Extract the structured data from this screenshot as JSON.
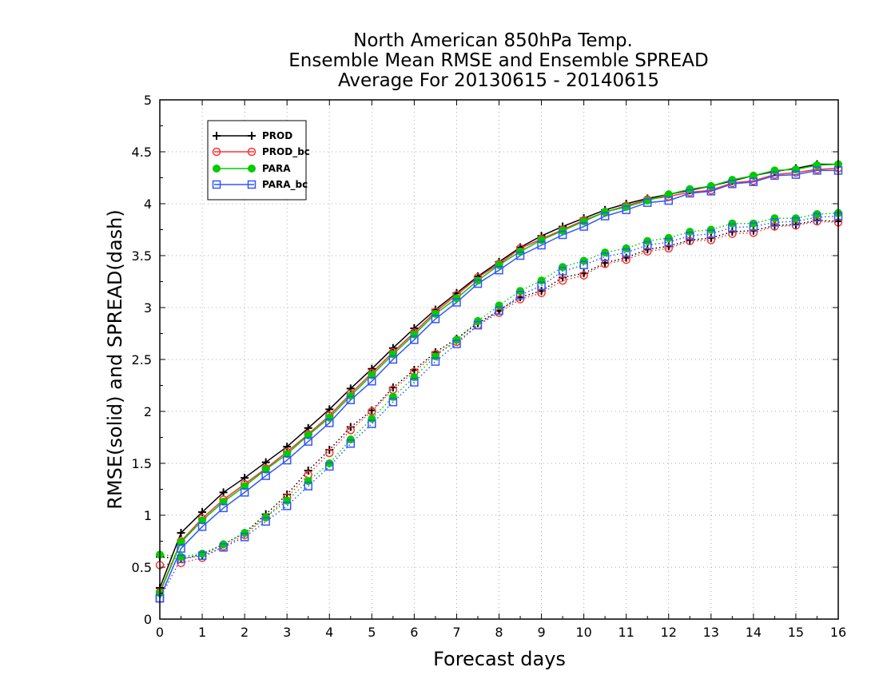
{
  "chart_data": {
    "type": "line",
    "title": [
      "North American 850hPa Temp.",
      "Ensemble Mean RMSE and Ensemble SPREAD",
      "Average For 20130615 - 20140615"
    ],
    "xlabel": "Forecast days",
    "ylabel": "RMSE(solid) and SPREAD(dash)",
    "xlim": [
      0,
      16
    ],
    "ylim": [
      0,
      5
    ],
    "xticks": [
      0,
      1,
      2,
      3,
      4,
      5,
      6,
      7,
      8,
      9,
      10,
      11,
      12,
      13,
      14,
      15,
      16
    ],
    "xtick_labels": [
      "0",
      "1",
      "2",
      "3",
      "4",
      "5",
      "6",
      "7",
      "8",
      "9",
      "10",
      "11",
      "12",
      "13",
      "14",
      "15",
      "16"
    ],
    "yticks": [
      0,
      0.5,
      1,
      1.5,
      2,
      2.5,
      3,
      3.5,
      4,
      4.5,
      5
    ],
    "ytick_labels": [
      "0",
      "0.5",
      "1",
      "1.5",
      "2",
      "2.5",
      "3",
      "3.5",
      "4",
      "4.5",
      "5"
    ],
    "grid": true,
    "legend_position": "top-left",
    "x": [
      0,
      0.5,
      1,
      1.5,
      2,
      2.5,
      3,
      3.5,
      4,
      4.5,
      5,
      5.5,
      6,
      6.5,
      7,
      7.5,
      8,
      8.5,
      9,
      9.5,
      10,
      10.5,
      11,
      11.5,
      12,
      12.5,
      13,
      13.5,
      14,
      14.5,
      15,
      15.5,
      16
    ],
    "series": [
      {
        "name": "PROD",
        "color": "#000000",
        "marker": "plus",
        "rmse": [
          0.3,
          0.83,
          1.03,
          1.22,
          1.36,
          1.51,
          1.66,
          1.84,
          2.02,
          2.22,
          2.41,
          2.61,
          2.8,
          2.98,
          3.14,
          3.3,
          3.44,
          3.58,
          3.69,
          3.78,
          3.86,
          3.94,
          4.0,
          4.05,
          4.09,
          4.13,
          4.17,
          4.22,
          4.27,
          4.31,
          4.34,
          4.38,
          4.38
        ],
        "spread": [
          0.6,
          0.58,
          0.62,
          0.72,
          0.83,
          1.01,
          1.2,
          1.43,
          1.63,
          1.85,
          2.01,
          2.23,
          2.4,
          2.57,
          2.7,
          2.85,
          2.97,
          3.1,
          3.16,
          3.29,
          3.33,
          3.43,
          3.48,
          3.56,
          3.59,
          3.65,
          3.67,
          3.73,
          3.74,
          3.79,
          3.8,
          3.84,
          3.83
        ]
      },
      {
        "name": "PROD_bc",
        "color": "#ff3333",
        "marker": "circle-open",
        "rmse": [
          0.26,
          0.75,
          0.97,
          1.15,
          1.3,
          1.45,
          1.61,
          1.78,
          1.96,
          2.17,
          2.37,
          2.57,
          2.76,
          2.96,
          3.12,
          3.29,
          3.42,
          3.57,
          3.66,
          3.75,
          3.84,
          3.92,
          3.98,
          4.04,
          4.07,
          4.11,
          4.13,
          4.2,
          4.22,
          4.28,
          4.3,
          4.33,
          4.34
        ],
        "spread": [
          0.52,
          0.54,
          0.59,
          0.7,
          0.81,
          0.98,
          1.17,
          1.39,
          1.6,
          1.82,
          2.0,
          2.21,
          2.38,
          2.55,
          2.67,
          2.83,
          2.95,
          3.08,
          3.14,
          3.26,
          3.31,
          3.42,
          3.46,
          3.54,
          3.57,
          3.64,
          3.65,
          3.71,
          3.72,
          3.78,
          3.79,
          3.83,
          3.82
        ]
      },
      {
        "name": "PARA",
        "color": "#00cc00",
        "marker": "circle-filled",
        "rmse": [
          0.25,
          0.74,
          0.95,
          1.13,
          1.28,
          1.44,
          1.59,
          1.77,
          1.94,
          2.15,
          2.35,
          2.55,
          2.74,
          2.94,
          3.09,
          3.26,
          3.41,
          3.54,
          3.65,
          3.74,
          3.83,
          3.92,
          3.97,
          4.03,
          4.09,
          4.14,
          4.17,
          4.23,
          4.27,
          4.32,
          4.33,
          4.37,
          4.38
        ],
        "spread": [
          0.62,
          0.6,
          0.63,
          0.72,
          0.83,
          0.98,
          1.14,
          1.33,
          1.5,
          1.73,
          1.93,
          2.14,
          2.33,
          2.53,
          2.69,
          2.87,
          3.02,
          3.16,
          3.26,
          3.39,
          3.45,
          3.53,
          3.57,
          3.64,
          3.67,
          3.73,
          3.75,
          3.81,
          3.81,
          3.86,
          3.86,
          3.9,
          3.91
        ]
      },
      {
        "name": "PARA_bc",
        "color": "#3355ff",
        "marker": "square-open",
        "rmse": [
          0.2,
          0.68,
          0.89,
          1.07,
          1.22,
          1.38,
          1.53,
          1.71,
          1.89,
          2.11,
          2.29,
          2.5,
          2.69,
          2.89,
          3.05,
          3.23,
          3.36,
          3.5,
          3.6,
          3.7,
          3.78,
          3.88,
          3.94,
          4.01,
          4.03,
          4.1,
          4.12,
          4.19,
          4.21,
          4.27,
          4.28,
          4.32,
          4.32
        ],
        "spread": [
          0.2,
          0.58,
          0.61,
          0.69,
          0.79,
          0.94,
          1.09,
          1.28,
          1.47,
          1.69,
          1.88,
          2.09,
          2.28,
          2.48,
          2.65,
          2.83,
          2.97,
          3.12,
          3.21,
          3.35,
          3.41,
          3.49,
          3.53,
          3.6,
          3.63,
          3.69,
          3.71,
          3.77,
          3.78,
          3.82,
          3.83,
          3.87,
          3.88
        ]
      }
    ]
  }
}
